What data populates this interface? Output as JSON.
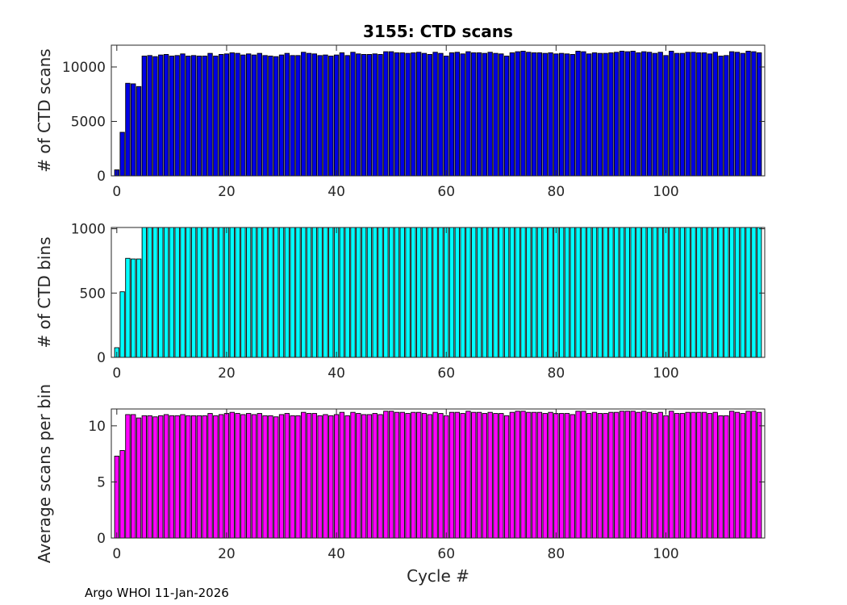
{
  "footer": "Argo WHOI 11-Jan-2026",
  "chart_data": [
    {
      "type": "bar",
      "title": "3155: CTD scans",
      "xlabel": "",
      "ylabel": "# of CTD scans",
      "color": "#0000e6",
      "xlim": [
        -1,
        118
      ],
      "ylim": [
        0,
        12000
      ],
      "xticks": [
        0,
        20,
        40,
        60,
        80,
        100
      ],
      "yticks": [
        0,
        5000,
        10000
      ],
      "x": [
        0,
        1,
        2,
        3,
        4,
        5,
        6,
        7,
        8,
        9,
        10,
        11,
        12,
        13,
        14,
        15,
        16,
        17,
        18,
        19,
        20,
        21,
        22,
        23,
        24,
        25,
        26,
        27,
        28,
        29,
        30,
        31,
        32,
        33,
        34,
        35,
        36,
        37,
        38,
        39,
        40,
        41,
        42,
        43,
        44,
        45,
        46,
        47,
        48,
        49,
        50,
        51,
        52,
        53,
        54,
        55,
        56,
        57,
        58,
        59,
        60,
        61,
        62,
        63,
        64,
        65,
        66,
        67,
        68,
        69,
        70,
        71,
        72,
        73,
        74,
        75,
        76,
        77,
        78,
        79,
        80,
        81,
        82,
        83,
        84,
        85,
        86,
        87,
        88,
        89,
        90,
        91,
        92,
        93,
        94,
        95,
        96,
        97,
        98,
        99,
        100,
        101,
        102,
        103,
        104,
        105,
        106,
        107,
        108,
        109,
        110,
        111,
        112,
        113,
        114,
        115,
        116,
        117
      ],
      "values": [
        550,
        4000,
        8500,
        8450,
        8200,
        11000,
        11050,
        10950,
        11100,
        11150,
        11000,
        11050,
        11200,
        11000,
        11050,
        11000,
        11000,
        11250,
        11000,
        11150,
        11200,
        11300,
        11250,
        11100,
        11200,
        11100,
        11250,
        11050,
        11000,
        10950,
        11100,
        11250,
        11050,
        11050,
        11350,
        11250,
        11200,
        11050,
        11100,
        11000,
        11100,
        11300,
        11050,
        11350,
        11200,
        11150,
        11150,
        11200,
        11150,
        11400,
        11400,
        11300,
        11300,
        11250,
        11300,
        11350,
        11250,
        11150,
        11350,
        11250,
        11000,
        11300,
        11350,
        11200,
        11400,
        11300,
        11300,
        11250,
        11350,
        11250,
        11200,
        11000,
        11300,
        11400,
        11450,
        11350,
        11300,
        11300,
        11250,
        11300,
        11200,
        11250,
        11200,
        11150,
        11450,
        11400,
        11200,
        11300,
        11250,
        11250,
        11300,
        11350,
        11450,
        11400,
        11450,
        11300,
        11400,
        11350,
        11250,
        11350,
        11050,
        11450,
        11250,
        11250,
        11350,
        11350,
        11300,
        11300,
        11200,
        11350,
        11000,
        11050,
        11400,
        11350,
        11250,
        11450,
        11400,
        11300
      ]
    },
    {
      "type": "bar",
      "title": "",
      "xlabel": "",
      "ylabel": "# of CTD bins",
      "color": "#00ffff",
      "xlim": [
        -1,
        118
      ],
      "ylim": [
        0,
        1010
      ],
      "xticks": [
        0,
        20,
        40,
        60,
        80,
        100
      ],
      "yticks": [
        0,
        500,
        1000
      ],
      "x": [
        0,
        1,
        2,
        3,
        4,
        5,
        6,
        7,
        8,
        9,
        10,
        11,
        12,
        13,
        14,
        15,
        16,
        17,
        18,
        19,
        20,
        21,
        22,
        23,
        24,
        25,
        26,
        27,
        28,
        29,
        30,
        31,
        32,
        33,
        34,
        35,
        36,
        37,
        38,
        39,
        40,
        41,
        42,
        43,
        44,
        45,
        46,
        47,
        48,
        49,
        50,
        51,
        52,
        53,
        54,
        55,
        56,
        57,
        58,
        59,
        60,
        61,
        62,
        63,
        64,
        65,
        66,
        67,
        68,
        69,
        70,
        71,
        72,
        73,
        74,
        75,
        76,
        77,
        78,
        79,
        80,
        81,
        82,
        83,
        84,
        85,
        86,
        87,
        88,
        89,
        90,
        91,
        92,
        93,
        94,
        95,
        96,
        97,
        98,
        99,
        100,
        101,
        102,
        103,
        104,
        105,
        106,
        107,
        108,
        109,
        110,
        111,
        112,
        113,
        114,
        115,
        116,
        117
      ],
      "values": [
        75,
        510,
        770,
        765,
        765,
        1010,
        1010,
        1010,
        1010,
        1010,
        1010,
        1010,
        1010,
        1010,
        1010,
        1010,
        1010,
        1010,
        1010,
        1010,
        1010,
        1010,
        1010,
        1010,
        1010,
        1010,
        1010,
        1010,
        1010,
        1010,
        1010,
        1010,
        1010,
        1010,
        1010,
        1010,
        1010,
        1010,
        1010,
        1010,
        1010,
        1010,
        1010,
        1010,
        1010,
        1010,
        1010,
        1010,
        1010,
        1010,
        1010,
        1010,
        1010,
        1010,
        1010,
        1010,
        1010,
        1010,
        1010,
        1010,
        1010,
        1010,
        1010,
        1010,
        1010,
        1010,
        1010,
        1010,
        1010,
        1010,
        1010,
        1010,
        1010,
        1010,
        1010,
        1010,
        1010,
        1010,
        1010,
        1010,
        1010,
        1010,
        1010,
        1010,
        1010,
        1010,
        1010,
        1010,
        1010,
        1010,
        1010,
        1010,
        1010,
        1010,
        1010,
        1010,
        1010,
        1010,
        1010,
        1010,
        1010,
        1010,
        1010,
        1010,
        1010,
        1010,
        1010,
        1010,
        1010,
        1010,
        1010,
        1010,
        1010,
        1010,
        1010,
        1010,
        1010,
        1010
      ]
    },
    {
      "type": "bar",
      "title": "",
      "xlabel": "Cycle #",
      "ylabel": "Average scans per bin",
      "color": "#ff00ff",
      "xlim": [
        -1,
        118
      ],
      "ylim": [
        0,
        11.5
      ],
      "xticks": [
        0,
        20,
        40,
        60,
        80,
        100
      ],
      "yticks": [
        0,
        5,
        10
      ],
      "x": [
        0,
        1,
        2,
        3,
        4,
        5,
        6,
        7,
        8,
        9,
        10,
        11,
        12,
        13,
        14,
        15,
        16,
        17,
        18,
        19,
        20,
        21,
        22,
        23,
        24,
        25,
        26,
        27,
        28,
        29,
        30,
        31,
        32,
        33,
        34,
        35,
        36,
        37,
        38,
        39,
        40,
        41,
        42,
        43,
        44,
        45,
        46,
        47,
        48,
        49,
        50,
        51,
        52,
        53,
        54,
        55,
        56,
        57,
        58,
        59,
        60,
        61,
        62,
        63,
        64,
        65,
        66,
        67,
        68,
        69,
        70,
        71,
        72,
        73,
        74,
        75,
        76,
        77,
        78,
        79,
        80,
        81,
        82,
        83,
        84,
        85,
        86,
        87,
        88,
        89,
        90,
        91,
        92,
        93,
        94,
        95,
        96,
        97,
        98,
        99,
        100,
        101,
        102,
        103,
        104,
        105,
        106,
        107,
        108,
        109,
        110,
        111,
        112,
        113,
        114,
        115,
        116,
        117
      ],
      "values": [
        7.3,
        7.8,
        11.0,
        11.0,
        10.7,
        10.9,
        10.9,
        10.8,
        10.9,
        11.0,
        10.9,
        10.9,
        11.0,
        10.9,
        10.9,
        10.9,
        10.9,
        11.1,
        10.9,
        11.0,
        11.1,
        11.2,
        11.1,
        11.0,
        11.1,
        11.0,
        11.1,
        10.9,
        10.9,
        10.8,
        11.0,
        11.1,
        10.9,
        10.9,
        11.2,
        11.1,
        11.1,
        10.9,
        11.0,
        10.9,
        11.0,
        11.2,
        10.9,
        11.2,
        11.1,
        11.0,
        11.0,
        11.1,
        11.0,
        11.3,
        11.3,
        11.2,
        11.2,
        11.1,
        11.2,
        11.2,
        11.1,
        11.0,
        11.2,
        11.1,
        10.9,
        11.2,
        11.2,
        11.1,
        11.3,
        11.2,
        11.2,
        11.1,
        11.2,
        11.1,
        11.1,
        10.9,
        11.2,
        11.3,
        11.3,
        11.2,
        11.2,
        11.2,
        11.1,
        11.2,
        11.1,
        11.1,
        11.1,
        11.0,
        11.3,
        11.3,
        11.1,
        11.2,
        11.1,
        11.1,
        11.2,
        11.2,
        11.3,
        11.3,
        11.3,
        11.2,
        11.3,
        11.2,
        11.1,
        11.2,
        10.9,
        11.3,
        11.1,
        11.1,
        11.2,
        11.2,
        11.2,
        11.2,
        11.1,
        11.2,
        10.9,
        10.9,
        11.3,
        11.2,
        11.1,
        11.3,
        11.3,
        11.2
      ]
    }
  ]
}
